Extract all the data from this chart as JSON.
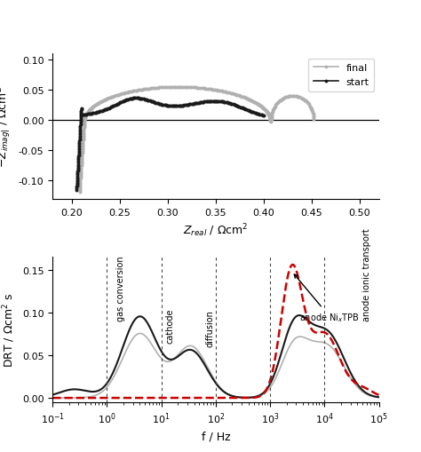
{
  "nyquist": {
    "xlim": [
      0.18,
      0.52
    ],
    "ylim": [
      -0.13,
      0.11
    ],
    "xlabel": "Z$_{real}$ / Ωcm$^2$",
    "ylabel": "−Z$_{imag|$$ / Ωcm$^2$",
    "xticks": [
      0.2,
      0.25,
      0.3,
      0.35,
      0.4,
      0.45,
      0.5
    ],
    "yticks": [
      -0.1,
      -0.05,
      0.0,
      0.05,
      0.1
    ],
    "start_color": "#1a1a1a",
    "final_color": "#b0b0b0",
    "legend_labels": [
      "start",
      "final"
    ]
  },
  "drt": {
    "ylim": [
      -0.005,
      0.165
    ],
    "xlabel": "f / Hz",
    "ylabel": "DRT / Ωcm$^2$ s",
    "yticks": [
      0.0,
      0.05,
      0.1,
      0.15
    ],
    "start_color": "#1a1a1a",
    "final_color": "#b0b0b0",
    "red_dashed_color": "#cc0000",
    "vlines": [
      1.0,
      10.0,
      100.0,
      1000.0,
      10000.0
    ]
  }
}
